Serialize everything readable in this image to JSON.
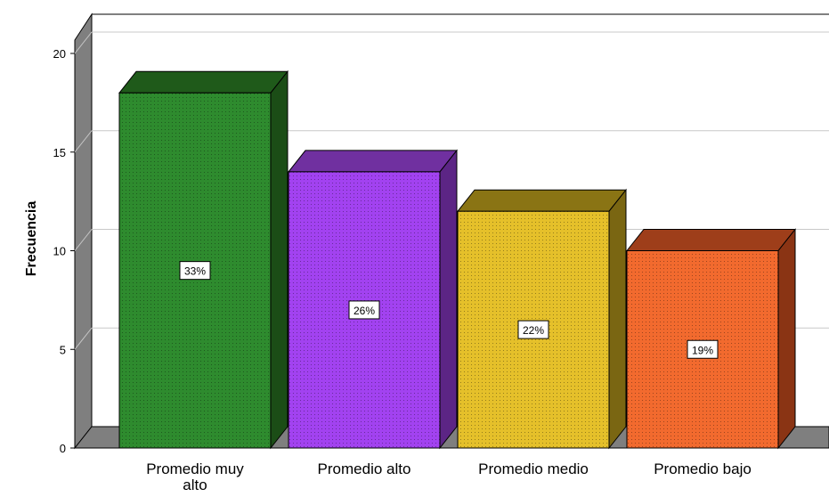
{
  "chart_data": {
    "type": "bar",
    "title": "",
    "xlabel": "",
    "ylabel": "Frecuencia",
    "ylim": [
      0,
      20
    ],
    "yticks": [
      0,
      5,
      10,
      15,
      20
    ],
    "grid": true,
    "style": "3d",
    "categories": [
      "Promedio muy alto",
      "Promedio alto",
      "Promedio medio",
      "Promedio bajo"
    ],
    "values": [
      18,
      14,
      12,
      10
    ],
    "data_labels": [
      "33%",
      "26%",
      "22%",
      "19%"
    ],
    "colors": [
      "#2e8b2e",
      "#a242f0",
      "#e5c02a",
      "#f26a2e"
    ],
    "top_colors": [
      "#1f5a1a",
      "#7030a0",
      "#8a7414",
      "#9e3e1a"
    ],
    "side_colors": [
      "#1b4d16",
      "#5c2585",
      "#7a6612",
      "#8a3414"
    ]
  }
}
